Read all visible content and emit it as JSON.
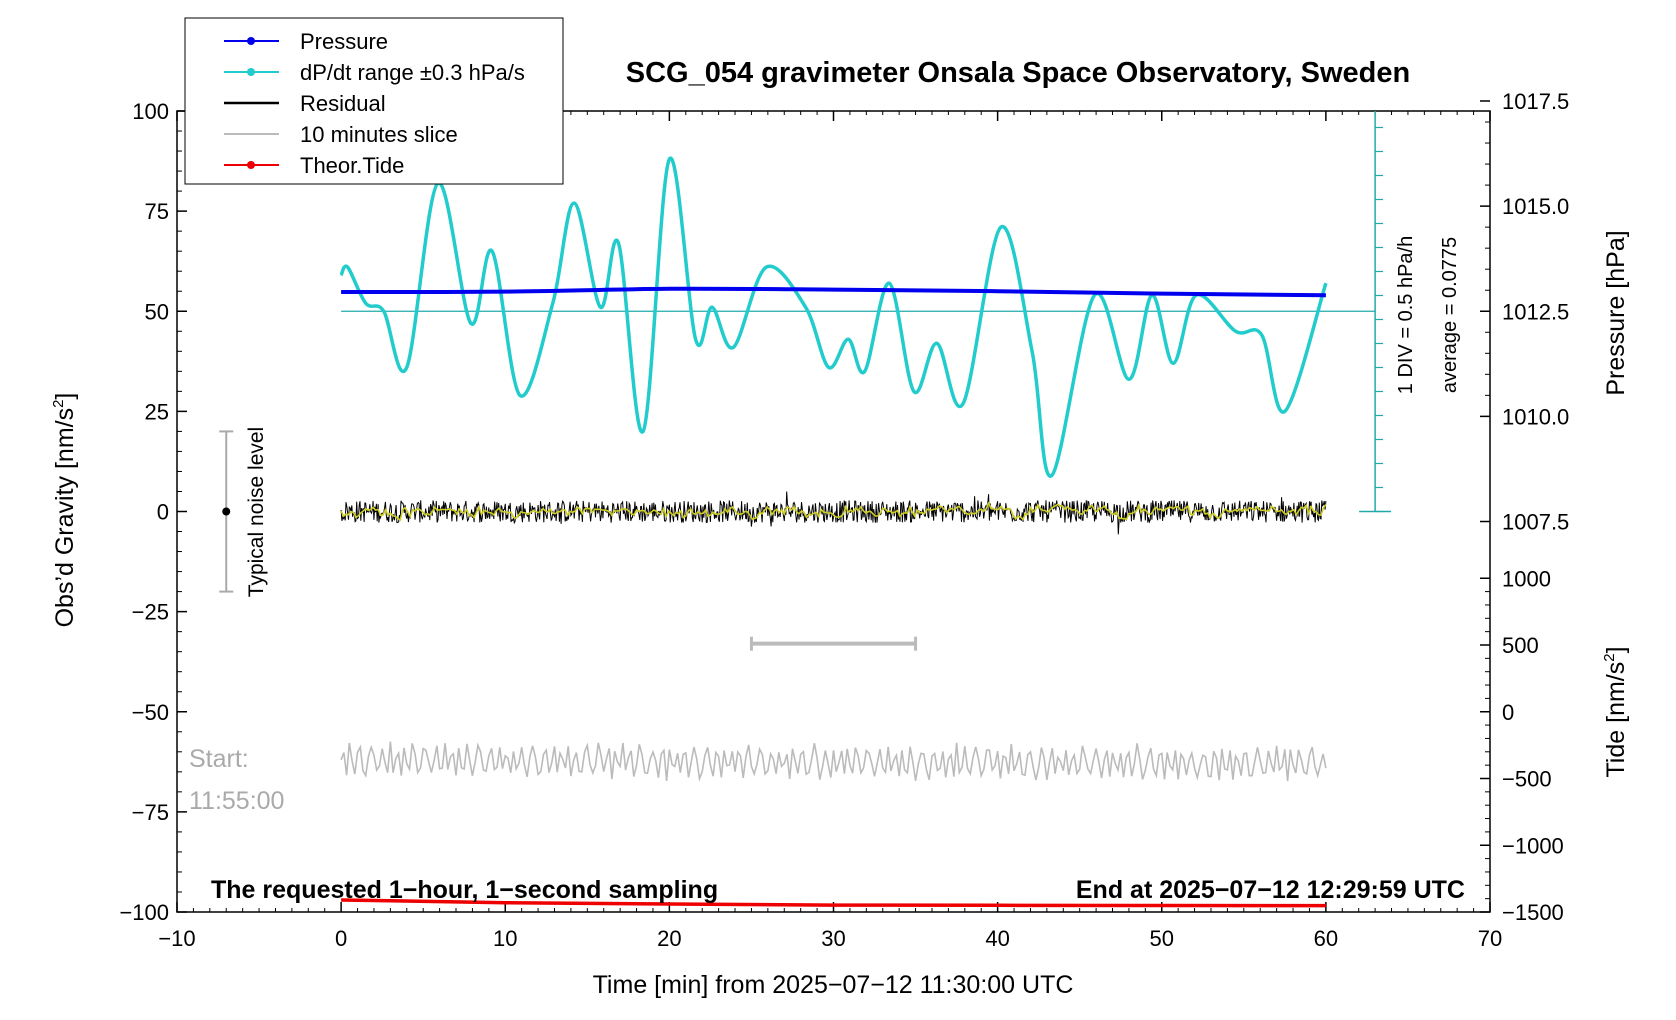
{
  "chart_data": {
    "type": "line",
    "title": "SCG_054 gravimeter Onsala Space Observatory, Sweden",
    "xlabel": "Time [min] from 2025−07−12 11:30:00 UTC",
    "ylabel_left": "Obs’d Gravity [nm/s",
    "ylabel_left_sup": "2",
    "ylabel_left_close": "]",
    "ylabel_right_pressure": "Pressure [hPa]",
    "ylabel_right_tide": "Tide [nm/s",
    "ylabel_right_tide_sup": "2",
    "ylabel_right_tide_close": "]",
    "xlim": [
      -10,
      70
    ],
    "ylim_left": [
      -100,
      100
    ],
    "x_ticks": [
      -10,
      0,
      10,
      20,
      30,
      40,
      50,
      60,
      70
    ],
    "x_tick_labels": [
      "−10",
      "0",
      "10",
      "20",
      "30",
      "40",
      "50",
      "60",
      "70"
    ],
    "y_ticks_left": [
      100,
      75,
      50,
      25,
      0,
      -25,
      -50,
      -75,
      -100
    ],
    "y_tick_labels_left": [
      "100",
      "75",
      "50",
      "25",
      "0",
      "−25",
      "−50",
      "−75",
      "−100"
    ],
    "pressure_axis": {
      "ticks": [
        1017.5,
        1015.0,
        1012.5,
        1010.0,
        1007.5
      ],
      "tick_labels": [
        "1017.5",
        "1015.0",
        "1012.5",
        "1010.0",
        "1007.5"
      ]
    },
    "tide_axis": {
      "ticks": [
        1000,
        500,
        0,
        -500,
        -1000,
        -1500
      ],
      "tick_labels": [
        "1000",
        "500",
        "0",
        "−500",
        "−1000",
        "−1500"
      ]
    },
    "legend": {
      "placement": "top-left",
      "entries": [
        {
          "label": "Pressure",
          "color": "#0000ee",
          "marker": true
        },
        {
          "label": "dP/dt range ±0.3 hPa/s",
          "color": "#22cccc",
          "marker": true
        },
        {
          "label": "Residual",
          "color": "#000000",
          "marker": false
        },
        {
          "label": "10 minutes slice",
          "color": "#bbbbbb",
          "marker": false
        },
        {
          "label": "Theor.Tide",
          "color": "#ee0000",
          "marker": true
        }
      ]
    },
    "series": [
      {
        "name": "Pressure",
        "color": "#0000ee",
        "x": [
          0,
          10,
          20,
          30,
          40,
          50,
          60
        ],
        "values": [
          54.8,
          54.9,
          55.6,
          55.4,
          55.0,
          54.4,
          54.0
        ]
      },
      {
        "name": "dP/dt",
        "color": "#22cccc",
        "x": [
          0,
          0.4,
          1.5,
          2.6,
          4.0,
          5.9,
          7.9,
          9.2,
          10.9,
          12.9,
          14.2,
          15.8,
          16.9,
          18.4,
          20.0,
          21.6,
          22.6,
          23.9,
          25.9,
          28.3,
          29.7,
          30.9,
          31.9,
          33.4,
          34.9,
          36.3,
          37.9,
          40.2,
          42.1,
          43.3,
          45.9,
          48.0,
          49.4,
          50.7,
          52.1,
          54.5,
          56.1,
          57.5,
          60.0
        ],
        "values": [
          59,
          61,
          52,
          50,
          36,
          82,
          47,
          65,
          29,
          52,
          77,
          51,
          67,
          20,
          88,
          43,
          51,
          41,
          61,
          51,
          36,
          43,
          35,
          57,
          30,
          42,
          27,
          71,
          40,
          9,
          54,
          33,
          54,
          37,
          54,
          45,
          44,
          25,
          57
        ]
      },
      {
        "name": "Residual",
        "color": "#000000",
        "x": [
          0,
          60
        ],
        "values": [
          0,
          0
        ],
        "noise_amplitude": 2.0
      },
      {
        "name": "10 minutes slice",
        "color": "#bbbbbb",
        "x": [
          0,
          60
        ],
        "values": [
          -62,
          -63
        ],
        "oscillation_amplitude": 4.5
      },
      {
        "name": "Theor.Tide",
        "color": "#ee0000",
        "x": [
          0,
          3,
          10,
          20,
          30,
          40,
          50,
          60
        ],
        "values": [
          -1410,
          -1415,
          -1430,
          -1440,
          -1448,
          -1450,
          -1451,
          -1452
        ]
      }
    ],
    "pressure_scale": {
      "label": "1 DIV = 0.5 hPa/h",
      "average_label": "average = 0.0775",
      "reference_level": 50,
      "x": 63
    },
    "noise_bar": {
      "label": "Typical noise level",
      "x": -7,
      "center": 0,
      "low": -20,
      "high": 20
    },
    "slice_window": {
      "start": 25,
      "end": 35,
      "level": -33
    },
    "annotations": {
      "start_label": "Start:",
      "start_time": "11:55:00",
      "requested": "The requested 1−hour, 1−second sampling",
      "end": "End at 2025−07−12 12:29:59 UTC"
    }
  }
}
